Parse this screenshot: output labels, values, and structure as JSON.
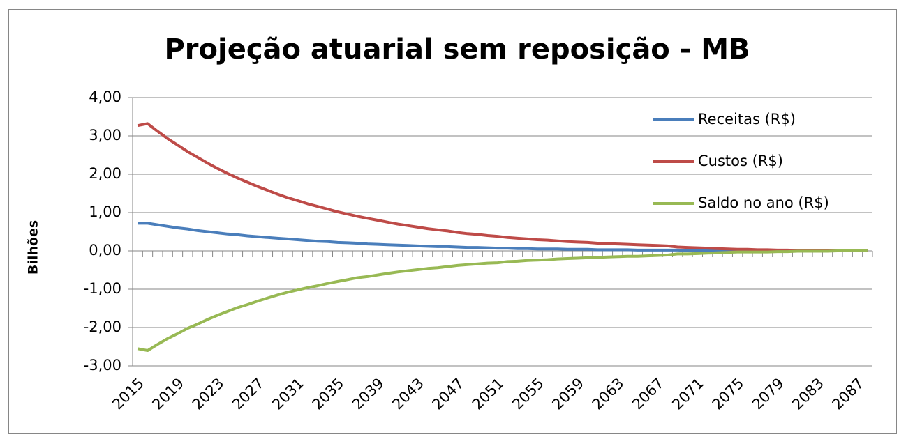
{
  "chart_data": {
    "type": "line",
    "title": "Projeção atuarial sem reposição - MB",
    "y_label": "Bilhões",
    "categories": [
      "2015",
      null,
      null,
      null,
      "2019",
      null,
      null,
      null,
      "2023",
      null,
      null,
      null,
      "2027",
      null,
      null,
      null,
      "2031",
      null,
      null,
      null,
      "2035",
      null,
      null,
      null,
      "2039",
      null,
      null,
      null,
      "2043",
      null,
      null,
      null,
      "2047",
      null,
      null,
      null,
      "2051",
      null,
      null,
      null,
      "2055",
      null,
      null,
      null,
      "2059",
      null,
      null,
      null,
      "2063",
      null,
      null,
      null,
      "2067",
      null,
      null,
      null,
      "2071",
      null,
      null,
      null,
      "2075",
      null,
      null,
      null,
      "2079",
      null,
      null,
      null,
      "2083",
      null,
      null,
      null,
      "2087",
      null
    ],
    "series": [
      {
        "name": "Receitas (R$)",
        "color": "#4a7ebb",
        "values": [
          0.72,
          0.72,
          0.68,
          0.64,
          0.6,
          0.57,
          0.53,
          0.5,
          0.47,
          0.44,
          0.42,
          0.39,
          0.37,
          0.35,
          0.33,
          0.31,
          0.29,
          0.27,
          0.25,
          0.24,
          0.22,
          0.21,
          0.2,
          0.18,
          0.17,
          0.16,
          0.15,
          0.14,
          0.13,
          0.12,
          0.11,
          0.11,
          0.1,
          0.09,
          0.09,
          0.08,
          0.07,
          0.07,
          0.06,
          0.06,
          0.05,
          0.05,
          0.05,
          0.04,
          0.04,
          0.04,
          0.03,
          0.03,
          0.03,
          0.03,
          0.02,
          0.02,
          0.02,
          0.02,
          0.02,
          0.01,
          0.01,
          0.01,
          0.01,
          0.01,
          0.01,
          0.01,
          0,
          0,
          0,
          0,
          0,
          0,
          0,
          0,
          0,
          0,
          0,
          0
        ]
      },
      {
        "name": "Custos (R$)",
        "color": "#be4b48",
        "values": [
          3.27,
          3.32,
          3.12,
          2.93,
          2.76,
          2.59,
          2.44,
          2.29,
          2.15,
          2.02,
          1.9,
          1.79,
          1.68,
          1.58,
          1.48,
          1.39,
          1.31,
          1.23,
          1.16,
          1.09,
          1.02,
          0.96,
          0.9,
          0.85,
          0.8,
          0.75,
          0.7,
          0.66,
          0.62,
          0.58,
          0.55,
          0.52,
          0.48,
          0.45,
          0.43,
          0.4,
          0.38,
          0.35,
          0.33,
          0.31,
          0.29,
          0.28,
          0.26,
          0.24,
          0.23,
          0.22,
          0.2,
          0.19,
          0.18,
          0.17,
          0.16,
          0.15,
          0.14,
          0.13,
          0.1,
          0.09,
          0.08,
          0.07,
          0.06,
          0.05,
          0.04,
          0.04,
          0.03,
          0.03,
          0.02,
          0.02,
          0.01,
          0.01,
          0.01,
          0.01,
          0,
          0,
          0,
          0
        ]
      },
      {
        "name": "Saldo no ano (R$)",
        "color": "#98b954",
        "values": [
          -2.55,
          -2.6,
          -2.44,
          -2.29,
          -2.16,
          -2.02,
          -1.91,
          -1.79,
          -1.68,
          -1.58,
          -1.48,
          -1.4,
          -1.31,
          -1.23,
          -1.15,
          -1.08,
          -1.02,
          -0.96,
          -0.91,
          -0.85,
          -0.8,
          -0.75,
          -0.7,
          -0.67,
          -0.63,
          -0.59,
          -0.55,
          -0.52,
          -0.49,
          -0.46,
          -0.44,
          -0.41,
          -0.38,
          -0.36,
          -0.34,
          -0.32,
          -0.31,
          -0.28,
          -0.27,
          -0.25,
          -0.24,
          -0.23,
          -0.21,
          -0.2,
          -0.19,
          -0.18,
          -0.17,
          -0.16,
          -0.15,
          -0.14,
          -0.14,
          -0.13,
          -0.12,
          -0.11,
          -0.08,
          -0.08,
          -0.07,
          -0.06,
          -0.05,
          -0.04,
          -0.03,
          -0.03,
          -0.03,
          -0.03,
          -0.02,
          -0.02,
          -0.01,
          -0.01,
          -0.01,
          -0.01,
          0,
          0,
          0,
          0
        ]
      }
    ],
    "ylim": [
      -3,
      4
    ],
    "yticks": [
      {
        "value": -3,
        "label": "-3,00"
      },
      {
        "value": -2,
        "label": "-2,00"
      },
      {
        "value": -1,
        "label": "-1,00"
      },
      {
        "value": 0,
        "label": "0,00"
      },
      {
        "value": 1,
        "label": "1,00"
      },
      {
        "value": 2,
        "label": "2,00"
      },
      {
        "value": 3,
        "label": "3,00"
      },
      {
        "value": 4,
        "label": "4,00"
      }
    ],
    "grid": true,
    "legend": "top-right"
  }
}
